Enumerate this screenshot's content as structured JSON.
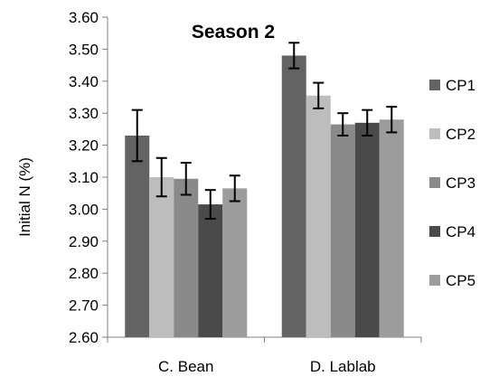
{
  "chart_data": {
    "type": "bar",
    "title": "Season 2",
    "ylabel": "Initial N (%)",
    "xlabel": "",
    "categories": [
      "C. Bean",
      "D. Lablab"
    ],
    "ylim": [
      2.6,
      3.6
    ],
    "yticks": [
      "2.60",
      "2.70",
      "2.80",
      "2.90",
      "3.00",
      "3.10",
      "3.20",
      "3.30",
      "3.40",
      "3.50",
      "3.60"
    ],
    "grid": false,
    "legend_position": "right",
    "error_bars": true,
    "series": [
      {
        "name": "CP1",
        "color": "#636363",
        "values": [
          3.23,
          3.48
        ],
        "errors": [
          0.08,
          0.04
        ]
      },
      {
        "name": "CP2",
        "color": "#bdbdbd",
        "values": [
          3.1,
          3.355
        ],
        "errors": [
          0.06,
          0.04
        ]
      },
      {
        "name": "CP3",
        "color": "#8a8a8a",
        "values": [
          3.095,
          3.265
        ],
        "errors": [
          0.05,
          0.035
        ]
      },
      {
        "name": "CP4",
        "color": "#4a4a4a",
        "values": [
          3.015,
          3.27
        ],
        "errors": [
          0.045,
          0.04
        ]
      },
      {
        "name": "CP5",
        "color": "#9c9c9c",
        "values": [
          3.065,
          3.28
        ],
        "errors": [
          0.04,
          0.04
        ]
      }
    ]
  }
}
